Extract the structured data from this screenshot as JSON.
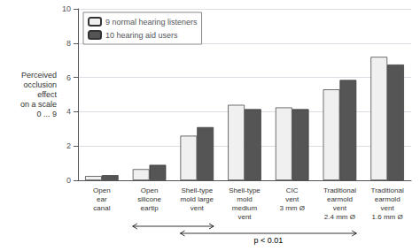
{
  "chart_data": {
    "type": "bar",
    "categories": [
      "Open\near\ncanal",
      "Open\nsilicone\neartip",
      "Shell-type\nmold large\nvent",
      "Shell-type\nmold\nmedium\nvent",
      "CIC\nvent\n3 mm Ø",
      "Traditional\nearmold\nvent\n2.4 mm Ø",
      "Traditional\nearmold\nvent\n1.6 mm Ø"
    ],
    "series": [
      {
        "name": "9 normal hearing listeners",
        "color": "#f0f0f0",
        "values": [
          0.25,
          0.65,
          2.6,
          4.4,
          4.25,
          5.3,
          7.2
        ]
      },
      {
        "name": "10 hearing aid users",
        "color": "#555555",
        "values": [
          0.3,
          0.9,
          3.1,
          4.15,
          4.15,
          5.85,
          6.75
        ]
      }
    ],
    "ylabel": "Perceived\nocclusion\neffect\non a scale\n0 ... 9",
    "annotations": [
      "p < 0.01"
    ],
    "ylim": [
      0,
      10
    ],
    "yticks": [
      0,
      2,
      4,
      6,
      8,
      10
    ],
    "grid": true,
    "legend": "upper left"
  }
}
